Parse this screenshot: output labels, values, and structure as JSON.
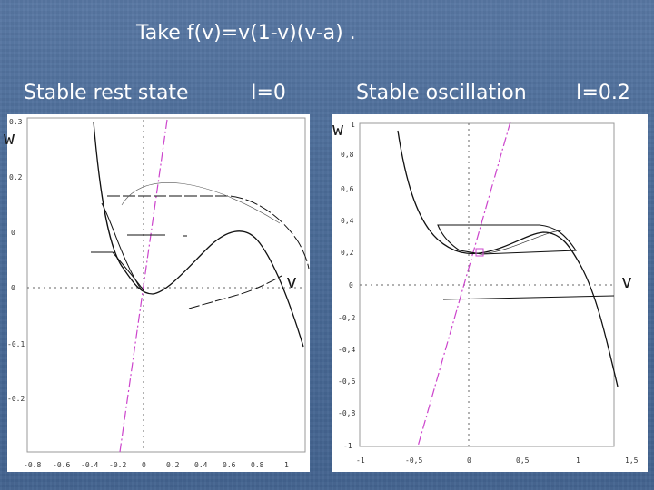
{
  "slide": {
    "title": "Take f(v)=v(1-v)(v-a) .",
    "label_rest": "Stable rest state",
    "label_i0": "I=0",
    "label_osc": "Stable oscillation",
    "label_i02": "I=0.2"
  },
  "left_plot": {
    "ylabel": "w",
    "xlabel": "v",
    "y_ticks": [
      "0.3",
      "0.2",
      "0",
      "0",
      "-0.1",
      "-0.2"
    ],
    "x_ticks": [
      "-0.8",
      "-0.6",
      "-0.4",
      "-0.2",
      "0",
      "0.2",
      "0.4",
      "0.6",
      "0.8",
      "1"
    ]
  },
  "right_plot": {
    "ylabel": "w",
    "xlabel": "v",
    "y_ticks": [
      "1",
      "0,8",
      "0,6",
      "0,4",
      "0,2",
      "0",
      "-0,2",
      "-0,4",
      "-0,6",
      "-0,8",
      "-1"
    ],
    "x_ticks": [
      "-1",
      "-0,5",
      "0",
      "0,5",
      "1",
      "1,5"
    ]
  },
  "colors": {
    "background": "#4a6b97",
    "nullcline_w": "#cc44cc",
    "curve": "#111111"
  }
}
